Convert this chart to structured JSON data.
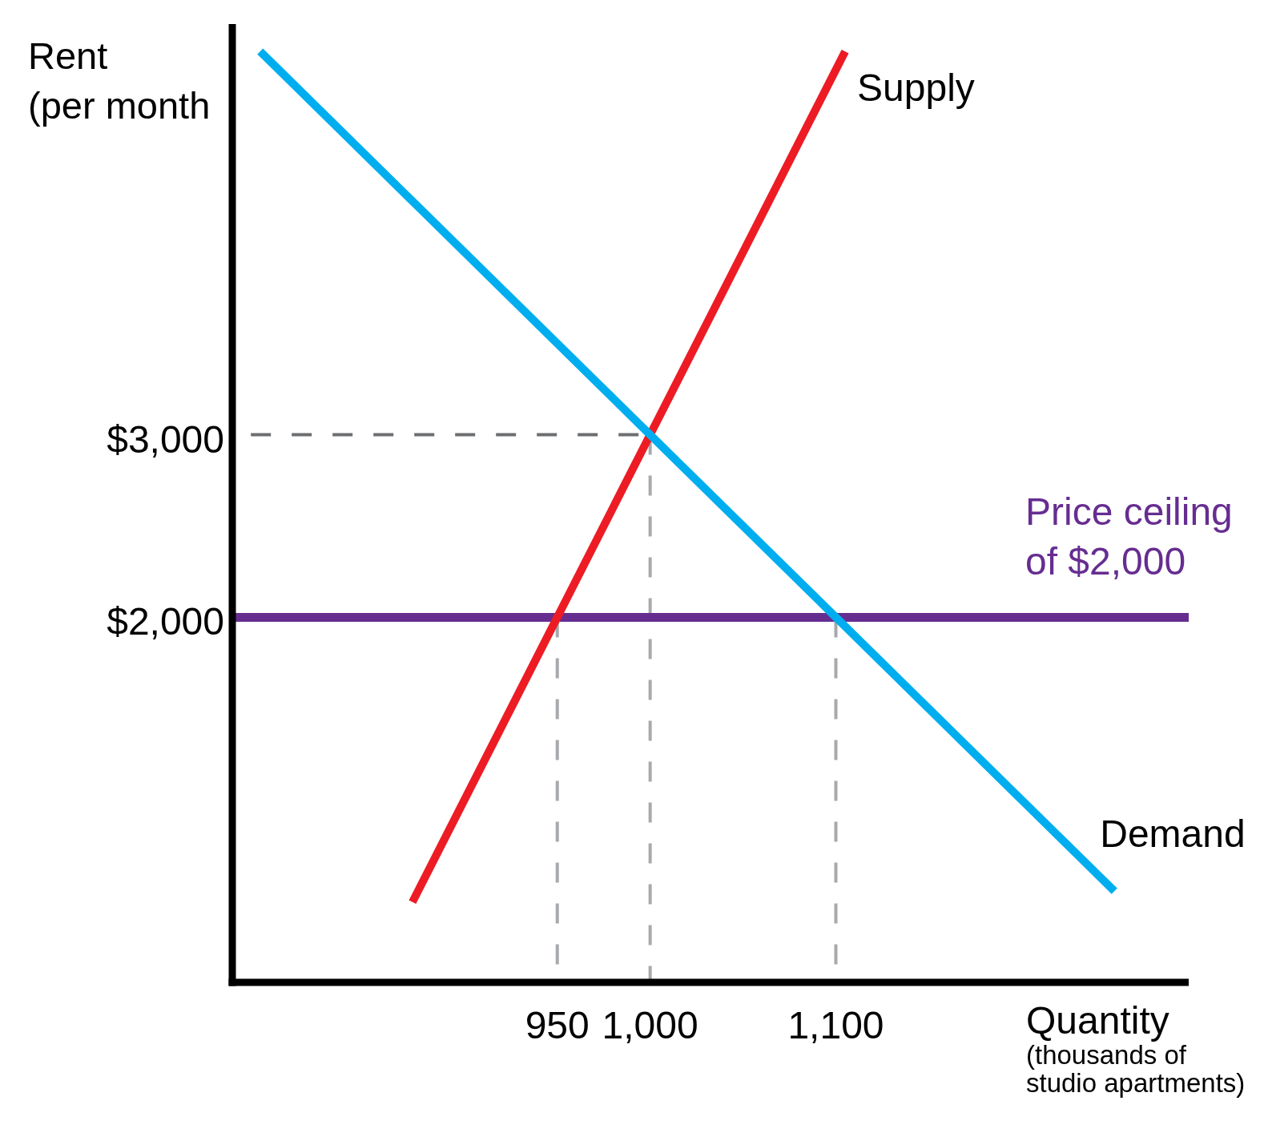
{
  "chart_data": {
    "type": "line",
    "ylabel": "Rent\n(per month",
    "xlabel": "Quantity\n(thousands of\nstudio apartments)",
    "xlim": [
      775,
      1290
    ],
    "xticks": [
      950,
      {
        "value": 1000,
        "label": "1,000"
      },
      {
        "value": 1100,
        "label": "1,100"
      }
    ],
    "ylim": [
      0,
      5250
    ],
    "yticks": [
      {
        "value": 2000,
        "label": "$2,000"
      },
      {
        "value": 3000,
        "label": "$3,000"
      }
    ],
    "series": [
      {
        "color": "#6d6e71",
        "line_style": "dashed",
        "x": [
          785,
          1000
        ],
        "values": [
          3000,
          3000
        ]
      },
      {
        "color": "#a7a9ac",
        "line_style": "dashed",
        "x": [
          950,
          950
        ],
        "values": [
          2000,
          0
        ]
      },
      {
        "color": "#a7a9ac",
        "line_style": "dashed",
        "x": [
          1000,
          1000
        ],
        "values": [
          3000,
          0
        ]
      },
      {
        "color": "#a7a9ac",
        "line_style": "dashed",
        "x": [
          1100,
          1100
        ],
        "values": [
          2000,
          0
        ]
      },
      {
        "name": "Supply",
        "color": "#ed1c24",
        "x": [
          872,
          950,
          1000,
          1105
        ],
        "values": [
          440,
          2000,
          3000,
          5100
        ]
      },
      {
        "name": "Demand",
        "color": "#00aeef",
        "x": [
          790,
          1000,
          1100,
          1250
        ],
        "values": [
          5100,
          3000,
          2000,
          500
        ]
      }
    ],
    "ref_lines": [
      {
        "axis": "y",
        "value": 2000,
        "label": "Price ceiling\nof $2,000",
        "color": "#662d91"
      }
    ]
  }
}
